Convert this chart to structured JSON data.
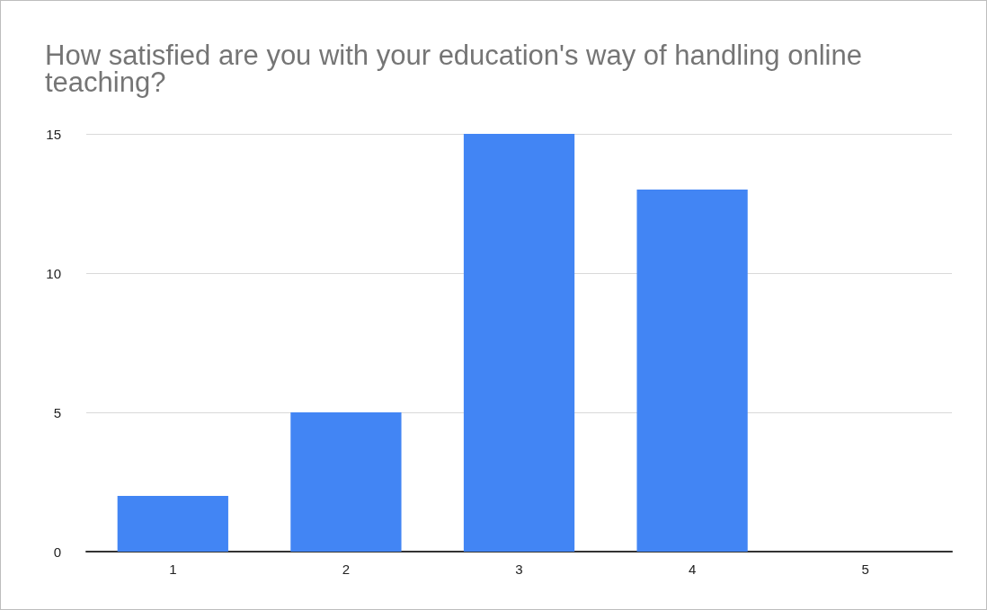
{
  "chart_data": {
    "type": "bar",
    "title": "How satisfied are you with your education's way of handling online teaching?",
    "categories": [
      "1",
      "2",
      "3",
      "4",
      "5"
    ],
    "values": [
      2,
      5,
      15,
      13,
      0
    ],
    "color": "#4285f4",
    "ylim": [
      0,
      15
    ],
    "yticks": [
      0,
      5,
      10,
      15
    ],
    "grid": "y"
  }
}
